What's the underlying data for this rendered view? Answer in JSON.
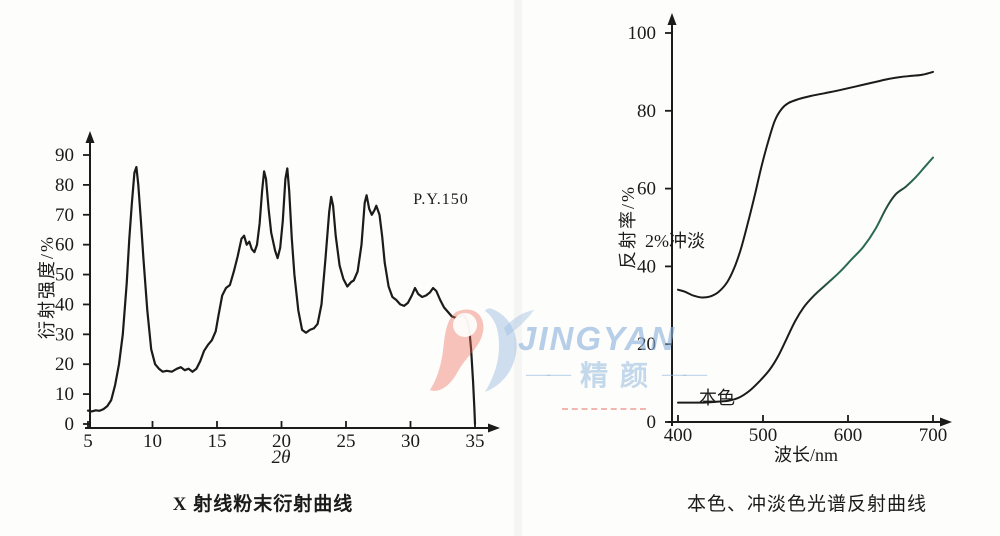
{
  "page": {
    "background": "#fdfdfb",
    "ink": "#1b1b1b"
  },
  "watermark": {
    "latin": "JINGYAN",
    "cjk": "精颜",
    "left_dash": "——",
    "right_dash": "——",
    "colors": {
      "blue": "#8db2db",
      "red": "#e86a58"
    }
  },
  "chart_data": [
    {
      "type": "line",
      "title": "X 射线粉末衍射曲线",
      "xlabel": "2θ",
      "ylabel": "衍射强度/%",
      "annotation": "P.Y.150",
      "xlim": [
        5,
        35
      ],
      "ylim": [
        0,
        90
      ],
      "x_ticks": [
        5,
        10,
        15,
        20,
        25,
        30,
        35
      ],
      "y_ticks": [
        0,
        10,
        20,
        30,
        40,
        50,
        60,
        70,
        80,
        90
      ],
      "grid": false,
      "legend": "none",
      "series": [
        {
          "name": "XRD",
          "color": "#1b1b1b",
          "smooth": false,
          "points": [
            [
              5.0,
              4.5
            ],
            [
              5.3,
              4.2
            ],
            [
              5.6,
              4.6
            ],
            [
              5.9,
              4.4
            ],
            [
              6.2,
              5
            ],
            [
              6.5,
              6
            ],
            [
              6.8,
              8
            ],
            [
              7.1,
              13
            ],
            [
              7.4,
              20
            ],
            [
              7.7,
              30
            ],
            [
              8.0,
              47
            ],
            [
              8.2,
              62
            ],
            [
              8.4,
              74
            ],
            [
              8.6,
              84
            ],
            [
              8.75,
              86
            ],
            [
              8.9,
              80
            ],
            [
              9.1,
              68
            ],
            [
              9.3,
              55
            ],
            [
              9.6,
              38
            ],
            [
              9.9,
              25
            ],
            [
              10.2,
              20
            ],
            [
              10.5,
              18.5
            ],
            [
              10.8,
              17.5
            ],
            [
              11.1,
              17.8
            ],
            [
              11.5,
              17.5
            ],
            [
              11.9,
              18.5
            ],
            [
              12.2,
              19
            ],
            [
              12.5,
              18
            ],
            [
              12.8,
              18.5
            ],
            [
              13.1,
              17.5
            ],
            [
              13.4,
              18.5
            ],
            [
              13.7,
              21
            ],
            [
              14.0,
              24.5
            ],
            [
              14.3,
              26.5
            ],
            [
              14.6,
              28
            ],
            [
              14.9,
              31
            ],
            [
              15.1,
              36
            ],
            [
              15.4,
              43
            ],
            [
              15.7,
              45.5
            ],
            [
              16.0,
              46.5
            ],
            [
              16.3,
              51
            ],
            [
              16.6,
              56
            ],
            [
              16.9,
              62
            ],
            [
              17.1,
              63
            ],
            [
              17.3,
              60
            ],
            [
              17.5,
              61
            ],
            [
              17.7,
              58.5
            ],
            [
              17.9,
              57.5
            ],
            [
              18.1,
              60
            ],
            [
              18.3,
              67
            ],
            [
              18.5,
              78
            ],
            [
              18.65,
              84.5
            ],
            [
              18.8,
              82
            ],
            [
              19.0,
              72
            ],
            [
              19.2,
              64
            ],
            [
              19.5,
              58
            ],
            [
              19.7,
              55.5
            ],
            [
              19.9,
              59
            ],
            [
              20.1,
              68
            ],
            [
              20.3,
              82
            ],
            [
              20.45,
              85.5
            ],
            [
              20.6,
              78
            ],
            [
              20.8,
              62
            ],
            [
              21.0,
              50
            ],
            [
              21.3,
              38
            ],
            [
              21.6,
              31.5
            ],
            [
              21.9,
              30.5
            ],
            [
              22.2,
              31.5
            ],
            [
              22.5,
              32
            ],
            [
              22.8,
              33.5
            ],
            [
              23.1,
              40
            ],
            [
              23.4,
              55
            ],
            [
              23.7,
              71
            ],
            [
              23.85,
              76
            ],
            [
              24.0,
              73
            ],
            [
              24.2,
              63
            ],
            [
              24.5,
              53
            ],
            [
              24.8,
              48.5
            ],
            [
              25.1,
              46
            ],
            [
              25.4,
              47.5
            ],
            [
              25.6,
              48
            ],
            [
              25.9,
              51
            ],
            [
              26.2,
              60
            ],
            [
              26.45,
              74
            ],
            [
              26.6,
              76.5
            ],
            [
              26.8,
              72
            ],
            [
              27.0,
              70
            ],
            [
              27.2,
              71.5
            ],
            [
              27.35,
              73
            ],
            [
              27.6,
              70
            ],
            [
              27.8,
              63
            ],
            [
              28.0,
              54
            ],
            [
              28.3,
              46
            ],
            [
              28.6,
              42.5
            ],
            [
              28.9,
              41.5
            ],
            [
              29.2,
              40
            ],
            [
              29.5,
              39.5
            ],
            [
              29.8,
              40.5
            ],
            [
              30.1,
              43
            ],
            [
              30.35,
              45.5
            ],
            [
              30.6,
              43.5
            ],
            [
              30.9,
              42.5
            ],
            [
              31.2,
              43
            ],
            [
              31.5,
              44
            ],
            [
              31.75,
              45.5
            ],
            [
              32.0,
              44.5
            ],
            [
              32.3,
              41.5
            ],
            [
              32.6,
              39
            ],
            [
              32.9,
              37.5
            ],
            [
              33.2,
              36
            ],
            [
              33.5,
              35.5
            ],
            [
              33.8,
              36
            ],
            [
              34.1,
              36.5
            ],
            [
              34.35,
              35
            ],
            [
              34.55,
              32
            ],
            [
              34.7,
              25
            ],
            [
              34.85,
              14
            ],
            [
              34.95,
              5
            ],
            [
              35.0,
              0
            ]
          ]
        }
      ]
    },
    {
      "type": "line",
      "title": "本色、冲淡色光谱反射曲线",
      "xlabel": "波长/nm",
      "ylabel": "反射率/%",
      "xlim": [
        400,
        700
      ],
      "ylim": [
        0,
        100
      ],
      "x_ticks": [
        400,
        500,
        600,
        700
      ],
      "y_ticks": [
        0,
        20,
        40,
        60,
        80,
        100
      ],
      "grid": false,
      "legend": "inline-labels",
      "series": [
        {
          "name": "2%冲淡",
          "color": "#1b1b1b",
          "smooth": true,
          "points": [
            [
              400,
              34
            ],
            [
              408,
              33.5
            ],
            [
              418,
              32.5
            ],
            [
              428,
              32
            ],
            [
              438,
              32.3
            ],
            [
              448,
              33.5
            ],
            [
              458,
              36
            ],
            [
              466,
              39.5
            ],
            [
              474,
              44.5
            ],
            [
              482,
              51
            ],
            [
              490,
              58
            ],
            [
              498,
              65.5
            ],
            [
              506,
              72
            ],
            [
              514,
              77.5
            ],
            [
              522,
              80.5
            ],
            [
              530,
              82
            ],
            [
              542,
              83
            ],
            [
              556,
              83.8
            ],
            [
              572,
              84.5
            ],
            [
              590,
              85.3
            ],
            [
              610,
              86.3
            ],
            [
              630,
              87.3
            ],
            [
              648,
              88.2
            ],
            [
              662,
              88.7
            ],
            [
              676,
              89
            ],
            [
              688,
              89.3
            ],
            [
              700,
              90
            ]
          ]
        },
        {
          "name": "本色",
          "color": "#1b1b1b",
          "color_end": "#2a6b52",
          "smooth": true,
          "points": [
            [
              400,
              5
            ],
            [
              415,
              5
            ],
            [
              430,
              5
            ],
            [
              445,
              5.2
            ],
            [
              460,
              5.5
            ],
            [
              472,
              6.3
            ],
            [
              484,
              8
            ],
            [
              496,
              10.5
            ],
            [
              508,
              13.5
            ],
            [
              518,
              17
            ],
            [
              528,
              21.5
            ],
            [
              538,
              26
            ],
            [
              548,
              29.5
            ],
            [
              560,
              32.5
            ],
            [
              575,
              35.5
            ],
            [
              590,
              38.5
            ],
            [
              605,
              42
            ],
            [
              618,
              45
            ],
            [
              632,
              49.5
            ],
            [
              645,
              55
            ],
            [
              656,
              58.5
            ],
            [
              668,
              60.5
            ],
            [
              680,
              63
            ],
            [
              690,
              65.5
            ],
            [
              700,
              68
            ]
          ]
        }
      ]
    }
  ]
}
